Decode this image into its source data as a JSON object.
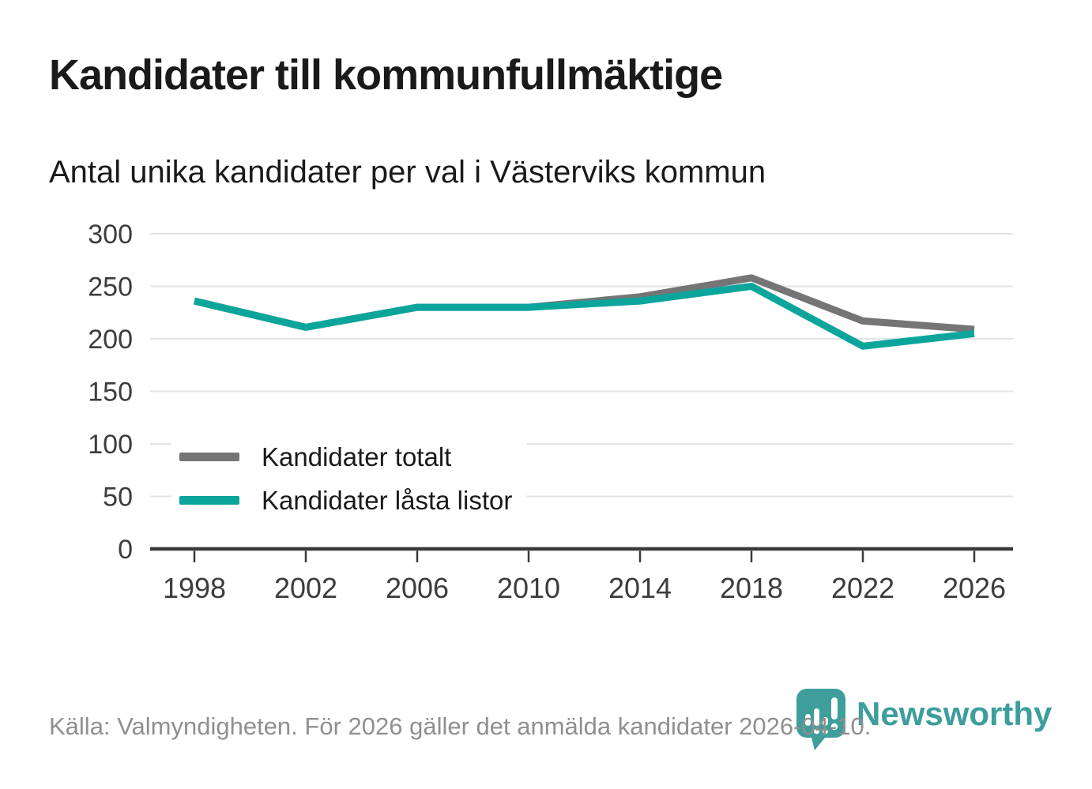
{
  "title": "Kandidater till kommunfullmäktige",
  "subtitle": "Antal unika kandidater per val i Västerviks kommun",
  "footer": {
    "source_text": "Källa: Valmyndigheten. För 2026 gäller det anmälda kandidater 2026-04-10."
  },
  "logo": {
    "text": "Newsworthy"
  },
  "colors": {
    "total": "#757575",
    "locked": "#0ba59c",
    "logo": "#3d9e9c",
    "grid": "#e3e3e3",
    "axis": "#3b3b3b",
    "axis_text": "#3c3c3c",
    "text": "#1a1a1a",
    "muted_text": "#8f8f8f"
  },
  "chart_data": {
    "type": "line",
    "title": "Kandidater till kommunfullmäktige",
    "subtitle": "Antal unika kandidater per val i Västerviks kommun",
    "x": [
      1998,
      2002,
      2006,
      2010,
      2014,
      2018,
      2022,
      2026
    ],
    "series": [
      {
        "name": "Kandidater totalt",
        "color_key": "total",
        "values": [
          236,
          211,
          230,
          230,
          240,
          258,
          217,
          209
        ]
      },
      {
        "name": "Kandidater låsta listor",
        "color_key": "locked",
        "values": [
          236,
          211,
          230,
          230,
          236,
          250,
          193,
          205
        ]
      }
    ],
    "xlabel": "",
    "ylabel": "",
    "ylim": [
      0,
      300
    ],
    "yticks": [
      0,
      50,
      100,
      150,
      200,
      250,
      300
    ],
    "grid": true,
    "legend_position": "inside-lower-left"
  }
}
